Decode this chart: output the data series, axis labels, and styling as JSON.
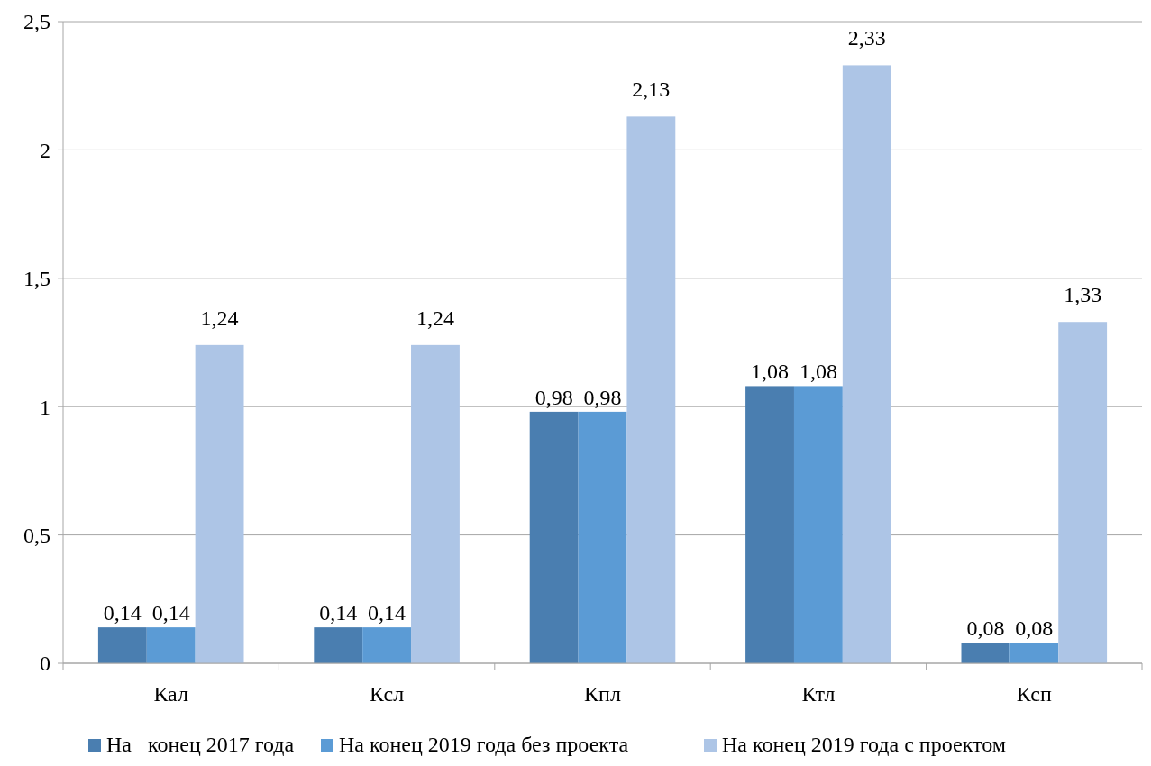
{
  "chart_data": {
    "type": "bar",
    "categories": [
      "Кал",
      "Ксл",
      "Кпл",
      "Ктл",
      "Ксп"
    ],
    "series": [
      {
        "name": "На   конец 2017 года",
        "color": "#4a7eb0",
        "values": [
          0.14,
          0.14,
          0.98,
          1.08,
          0.08
        ],
        "value_labels": [
          "0,14",
          "0,14",
          "0,98",
          "1,08",
          "0,08"
        ]
      },
      {
        "name": "На конец 2019 года без проекта",
        "color": "#5b9bd5",
        "values": [
          0.14,
          0.14,
          0.98,
          1.08,
          0.08
        ],
        "value_labels": [
          "0,14",
          "0,14",
          "0,98",
          "1,08",
          "0,08"
        ]
      },
      {
        "name": "На конец 2019 года с проектом",
        "color": "#adc5e6",
        "values": [
          1.24,
          1.24,
          2.13,
          2.33,
          1.33
        ],
        "value_labels": [
          "1,24",
          "1,24",
          "2,13",
          "2,33",
          "1,33"
        ]
      }
    ],
    "ylim": [
      0,
      2.5
    ],
    "yticks": [
      0,
      {
        "value": 0.5,
        "label": "0,5"
      },
      1,
      {
        "value": 1.5,
        "label": "1,5"
      },
      2,
      {
        "value": 2.5,
        "label": "2,5"
      }
    ],
    "grid": "y",
    "legend": "bottom"
  }
}
